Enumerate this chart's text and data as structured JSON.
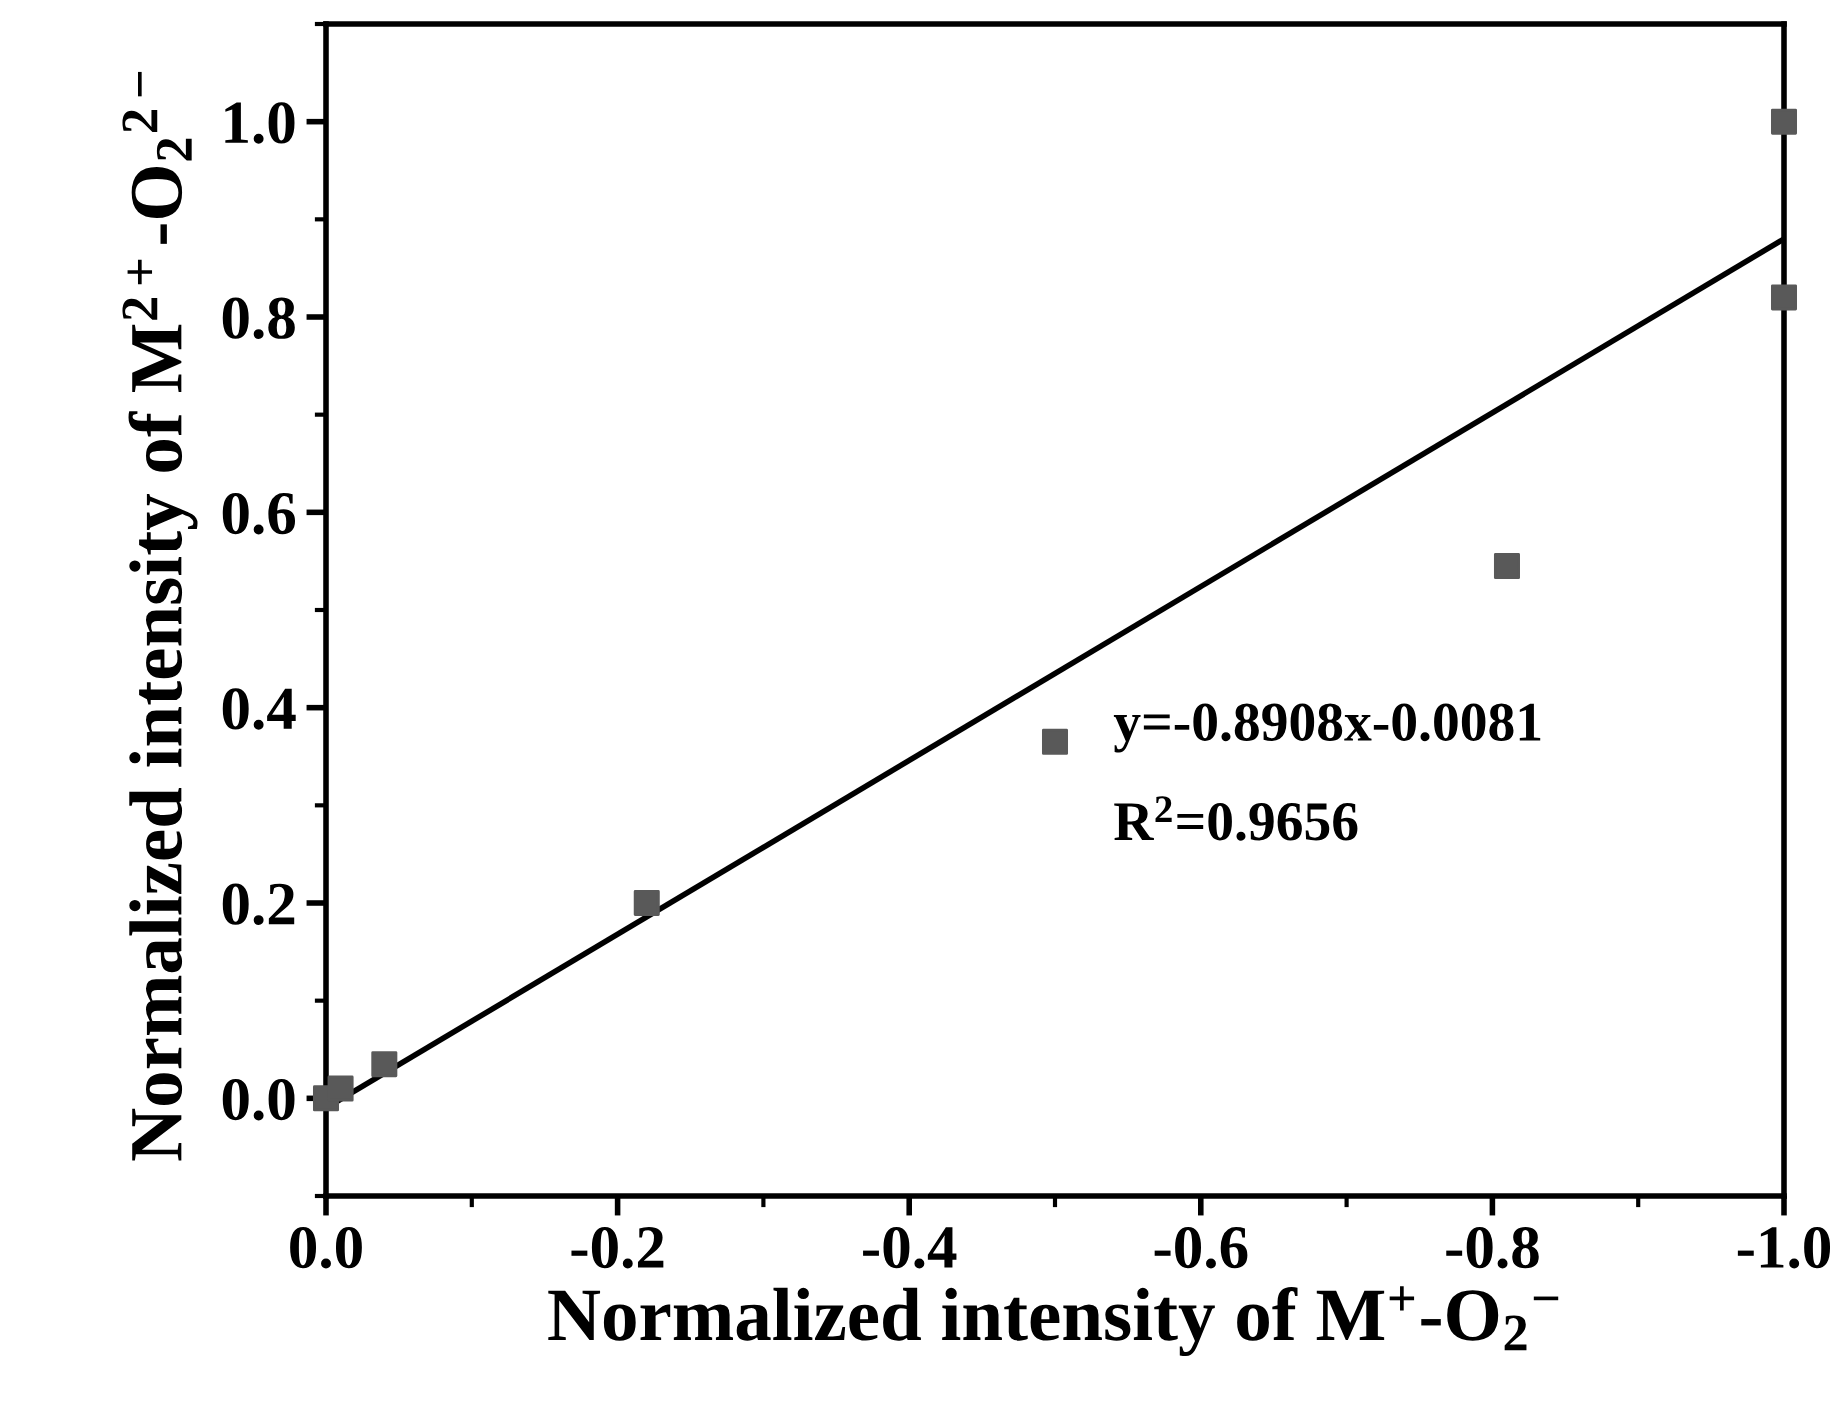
{
  "chart_data": {
    "type": "scatter",
    "xlabel": "Normalized intensity of M$^{+}$-O$_{2}$$^{−}$",
    "ylabel": "Normalized intensity of M$^{2+}$-O$_{2}$$^{2−}$",
    "xlim": [
      0.0,
      -1.0
    ],
    "ylim": [
      -0.1,
      1.1
    ],
    "xticks": [
      {
        "value": 0.0,
        "label": "0.0"
      },
      {
        "value": -0.2,
        "label": "-0.2"
      },
      {
        "value": -0.4,
        "label": "-0.4"
      },
      {
        "value": -0.6,
        "label": "-0.6"
      },
      {
        "value": -0.8,
        "label": "-0.8"
      },
      {
        "value": -1.0,
        "label": "-1.0"
      }
    ],
    "yticks": [
      {
        "value": 0.0,
        "label": "0.0"
      },
      {
        "value": 0.2,
        "label": "0.2"
      },
      {
        "value": 0.4,
        "label": "0.4"
      },
      {
        "value": 0.6,
        "label": "0.6"
      },
      {
        "value": 0.8,
        "label": "0.8"
      },
      {
        "value": 1.0,
        "label": "1.0"
      }
    ],
    "grid": false,
    "legend": false,
    "series": [
      {
        "marker": "square",
        "color": "#595959",
        "x": [
          0.0,
          -0.005,
          -0.01,
          -0.04,
          -0.22,
          -0.5,
          -0.81,
          -1.0,
          -1.0
        ],
        "values": [
          0.0,
          null,
          0.01,
          0.035,
          0.2,
          0.365,
          0.545,
          0.82,
          1.0
        ]
      },
      {
        "type": "line",
        "color": "#000000",
        "line_style": "solid",
        "x": [
          0.0,
          -1.0
        ],
        "values": [
          -0.01,
          0.88
        ]
      }
    ],
    "annotations": [
      "y=-0.8908x-0.0081",
      "R$^{2}$=0.9656"
    ]
  }
}
